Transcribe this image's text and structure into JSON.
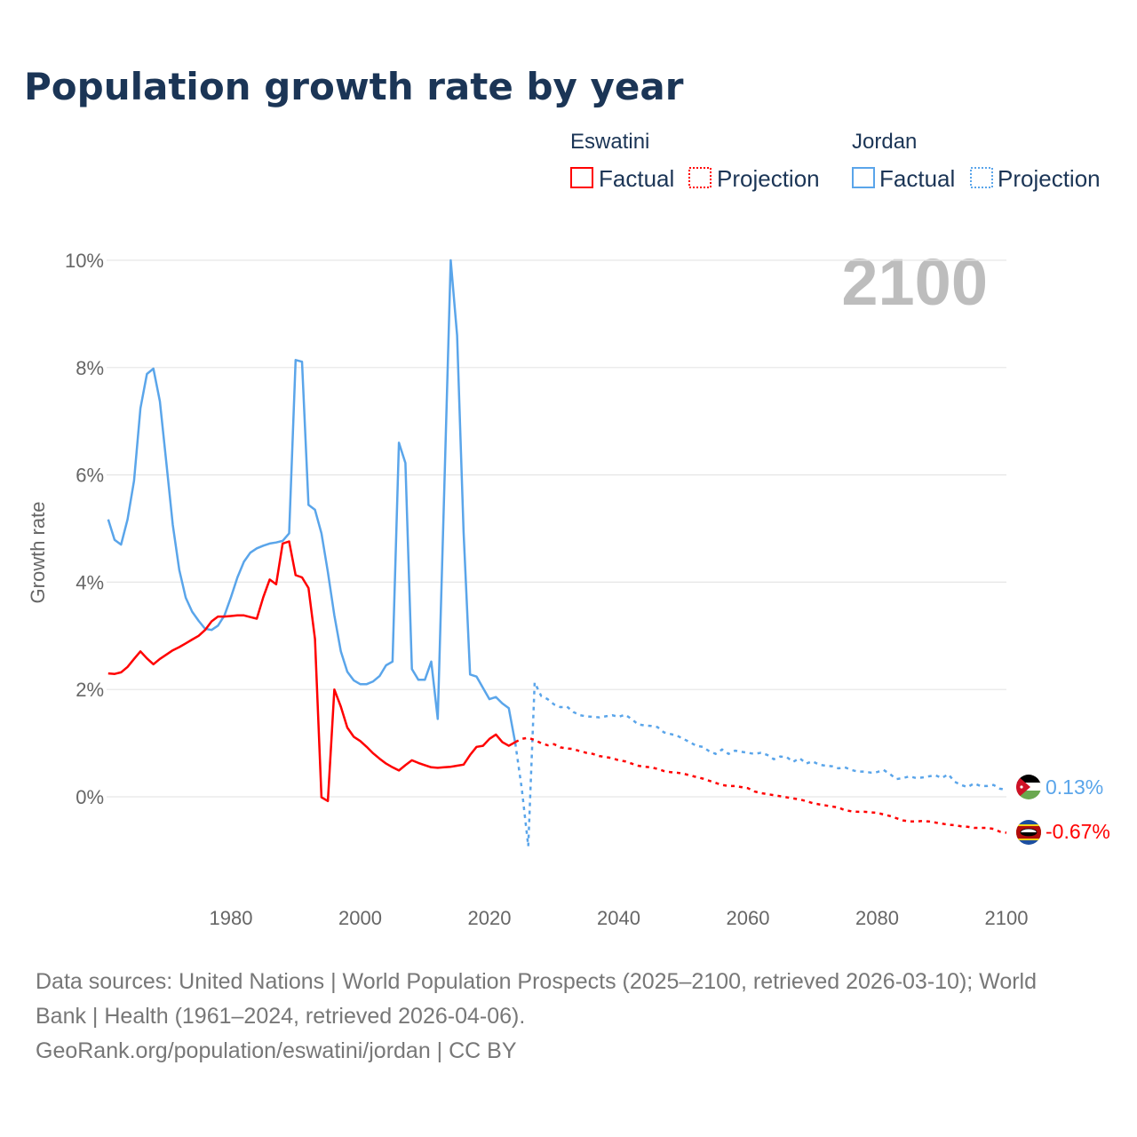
{
  "chart_data": {
    "type": "line",
    "title": "Population growth rate by year",
    "xlabel": "",
    "ylabel": "Growth rate",
    "xlim": [
      1961,
      2100
    ],
    "ylim": [
      -1,
      10
    ],
    "x_ticks": [
      "1980",
      "2000",
      "2020",
      "2040",
      "2060",
      "2080",
      "2100"
    ],
    "y_ticks": [
      "10%",
      "8%",
      "6%",
      "4%",
      "2%",
      "0%"
    ],
    "y_tick_values": [
      10,
      8,
      6,
      4,
      2,
      0
    ],
    "grid": true,
    "year_label": "2100",
    "legend": {
      "placement": "top-right",
      "groups": [
        {
          "country": "Eswatini",
          "factual": "Factual",
          "projection": "Projection",
          "color": "#ff0000"
        },
        {
          "country": "Jordan",
          "factual": "Factual",
          "projection": "Projection",
          "color": "#5aa5ea"
        }
      ]
    },
    "series": [
      {
        "name": "Eswatini",
        "color": "#ff0000",
        "end_label": "-0.67%",
        "factual": {
          "start_year": 1961,
          "values": [
            2.3,
            2.29,
            2.32,
            2.42,
            2.57,
            2.71,
            2.58,
            2.47,
            2.57,
            2.65,
            2.73,
            2.79,
            2.86,
            2.93,
            3.0,
            3.11,
            3.27,
            3.36,
            3.36,
            3.37,
            3.38,
            3.38,
            3.35,
            3.32,
            3.72,
            4.05,
            3.96,
            4.72,
            4.76,
            4.13,
            4.09,
            3.89,
            2.94,
            -0.01,
            -0.08,
            2.0,
            1.68,
            1.29,
            1.12,
            1.04,
            0.93,
            0.81,
            0.71,
            0.62,
            0.55,
            0.49,
            0.59,
            0.68,
            0.63,
            0.59,
            0.55,
            0.54,
            0.55,
            0.56,
            0.58,
            0.6,
            0.78,
            0.93,
            0.95,
            1.08,
            1.16,
            1.02,
            0.95,
            1.02
          ]
        },
        "projection": {
          "start_year": 2024,
          "values": [
            1.02,
            1.08,
            1.1,
            1.06,
            1.0,
            0.96,
            0.98,
            0.92,
            0.9,
            0.89,
            0.85,
            0.82,
            0.8,
            0.76,
            0.74,
            0.72,
            0.68,
            0.66,
            0.62,
            0.58,
            0.56,
            0.55,
            0.52,
            0.48,
            0.46,
            0.45,
            0.43,
            0.4,
            0.37,
            0.34,
            0.3,
            0.26,
            0.22,
            0.2,
            0.2,
            0.18,
            0.16,
            0.1,
            0.07,
            0.05,
            0.03,
            0.01,
            -0.01,
            -0.03,
            -0.05,
            -0.08,
            -0.12,
            -0.14,
            -0.16,
            -0.18,
            -0.2,
            -0.25,
            -0.27,
            -0.28,
            -0.28,
            -0.29,
            -0.3,
            -0.33,
            -0.36,
            -0.4,
            -0.44,
            -0.46,
            -0.46,
            -0.45,
            -0.46,
            -0.48,
            -0.5,
            -0.52,
            -0.53,
            -0.55,
            -0.56,
            -0.58,
            -0.58,
            -0.58,
            -0.6,
            -0.65,
            -0.67
          ]
        }
      },
      {
        "name": "Jordan",
        "color": "#5aa5ea",
        "end_label": "0.13%",
        "factual": {
          "start_year": 1961,
          "values": [
            5.17,
            4.79,
            4.7,
            5.17,
            5.89,
            7.24,
            7.88,
            7.98,
            7.37,
            6.22,
            5.07,
            4.23,
            3.71,
            3.45,
            3.28,
            3.13,
            3.11,
            3.19,
            3.38,
            3.72,
            4.09,
            4.38,
            4.55,
            4.63,
            4.68,
            4.72,
            4.74,
            4.77,
            4.91,
            8.14,
            8.11,
            5.44,
            5.35,
            4.91,
            4.19,
            3.38,
            2.71,
            2.33,
            2.17,
            2.1,
            2.1,
            2.15,
            2.25,
            2.45,
            2.52,
            6.6,
            6.22,
            2.38,
            2.18,
            2.18,
            2.52,
            1.45,
            5.7,
            10.0,
            8.6,
            4.93,
            2.28,
            2.24,
            2.03,
            1.82,
            1.86,
            1.74,
            1.65,
            1.0
          ]
        },
        "projection": {
          "start_year": 2024,
          "values": [
            1.0,
            0.15,
            -0.92,
            2.13,
            1.88,
            1.82,
            1.72,
            1.67,
            1.68,
            1.58,
            1.52,
            1.5,
            1.49,
            1.48,
            1.5,
            1.52,
            1.49,
            1.53,
            1.45,
            1.35,
            1.33,
            1.32,
            1.3,
            1.2,
            1.17,
            1.14,
            1.08,
            1.02,
            0.95,
            0.93,
            0.85,
            0.8,
            0.88,
            0.8,
            0.86,
            0.84,
            0.82,
            0.8,
            0.82,
            0.78,
            0.7,
            0.75,
            0.74,
            0.65,
            0.72,
            0.62,
            0.66,
            0.6,
            0.58,
            0.57,
            0.53,
            0.55,
            0.5,
            0.47,
            0.47,
            0.45,
            0.46,
            0.5,
            0.42,
            0.33,
            0.35,
            0.38,
            0.35,
            0.36,
            0.38,
            0.4,
            0.35,
            0.42,
            0.28,
            0.22,
            0.18,
            0.25,
            0.2,
            0.2,
            0.22,
            0.15,
            0.13
          ]
        }
      }
    ]
  },
  "footer": {
    "line1": "Data sources: United Nations | World Population Prospects (2025–2100, retrieved 2026-03-10); World",
    "line2": "Bank | Health (1961–2024, retrieved 2026-04-06).",
    "line3": "GeoRank.org/population/eswatini/jordan | CC BY"
  }
}
